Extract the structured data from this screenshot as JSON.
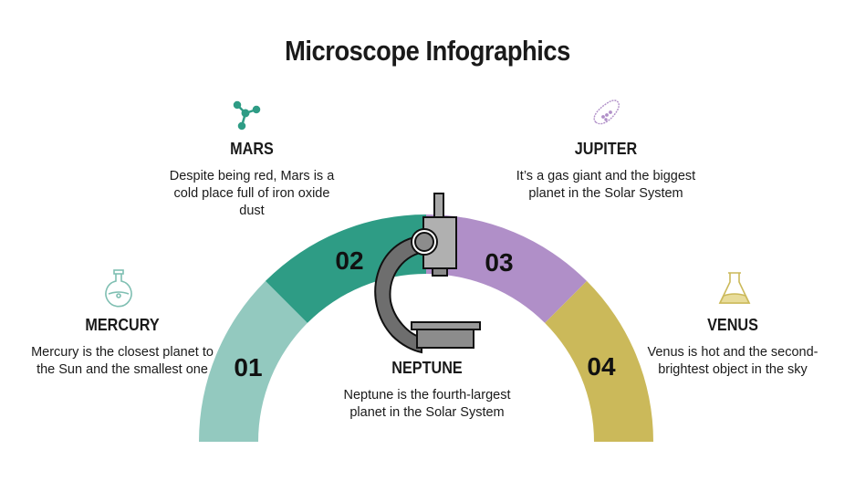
{
  "title": "Microscope Infographics",
  "colors": {
    "s1": "#93c9bf",
    "s2": "#2e9c85",
    "s3": "#b08fc8",
    "s4": "#cbb95a",
    "microscope": "#a8a8a8"
  },
  "segments": [
    {
      "number": "01",
      "name": "MERCURY",
      "text": "Mercury is the closest planet to the Sun and the smallest one",
      "icon": "flask-icon"
    },
    {
      "number": "02",
      "name": "MARS",
      "text": "Despite being red, Mars is a cold place full of iron oxide dust",
      "icon": "molecule-icon"
    },
    {
      "number": "03",
      "name": "JUPITER",
      "text": "It’s a gas giant and the biggest planet in the Solar System",
      "icon": "bacteria-icon"
    },
    {
      "number": "04",
      "name": "VENUS",
      "text": "Venus is hot and the second-brightest object in the sky",
      "icon": "beaker-icon"
    }
  ],
  "center": {
    "name": "NEPTUNE",
    "text": "Neptune is the fourth-largest planet in the Solar System",
    "icon": "microscope-icon"
  }
}
